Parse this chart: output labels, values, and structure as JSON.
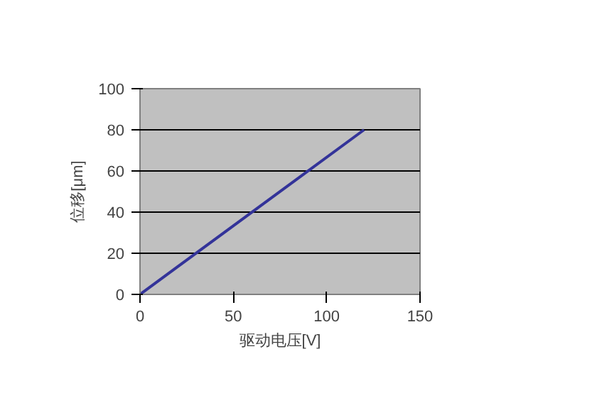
{
  "chart_data": {
    "type": "line",
    "xlabel": "驱动电压[V]",
    "ylabel": "位移[μm]",
    "x": [
      0,
      120
    ],
    "series": [
      {
        "color": "#333399",
        "values": [
          0,
          80
        ]
      }
    ],
    "xlim": [
      0,
      150
    ],
    "ylim": [
      0,
      100
    ],
    "xticks": [
      0,
      50,
      100,
      150
    ],
    "yticks": [
      0,
      20,
      40,
      60,
      80,
      100
    ],
    "grid": "y"
  }
}
